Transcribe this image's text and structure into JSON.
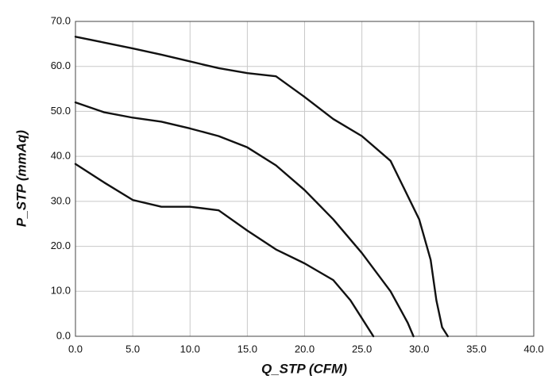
{
  "chart_data": {
    "type": "line",
    "xlabel": "Q_STP (CFM)",
    "ylabel": "P_STP (mmAq)",
    "xlim": [
      0,
      40
    ],
    "ylim": [
      0,
      70
    ],
    "grid": true,
    "xticks": [
      {
        "value": 0,
        "label": "0.0"
      },
      {
        "value": 5,
        "label": "5.0"
      },
      {
        "value": 10,
        "label": "10.0"
      },
      {
        "value": 15,
        "label": "15.0"
      },
      {
        "value": 20,
        "label": "20.0"
      },
      {
        "value": 25,
        "label": "25.0"
      },
      {
        "value": 30,
        "label": "30.0"
      },
      {
        "value": 35,
        "label": "35.0"
      },
      {
        "value": 40,
        "label": "40.0"
      }
    ],
    "yticks": [
      {
        "value": 0,
        "label": "0.0"
      },
      {
        "value": 10,
        "label": "10.0"
      },
      {
        "value": 20,
        "label": "20.0"
      },
      {
        "value": 30,
        "label": "30.0"
      },
      {
        "value": 40,
        "label": "40.0"
      },
      {
        "value": 50,
        "label": "50.0"
      },
      {
        "value": 60,
        "label": "60.0"
      },
      {
        "value": 70,
        "label": "70.0"
      }
    ],
    "series": [
      {
        "color": "#111111",
        "x": [
          0,
          2.5,
          5,
          7.5,
          10,
          12.5,
          15,
          17.5,
          20,
          22.5,
          25,
          27.5,
          30,
          31,
          31.5,
          32,
          32.5
        ],
        "values": [
          66.6,
          65.3,
          64,
          62.6,
          61.1,
          59.6,
          58.5,
          57.8,
          53.2,
          48.3,
          44.5,
          39,
          26,
          17,
          8,
          2,
          0
        ]
      },
      {
        "color": "#111111",
        "x": [
          0,
          2.5,
          5,
          7.5,
          10,
          12.5,
          15,
          17.5,
          20,
          22.5,
          25,
          27.5,
          29,
          29.5
        ],
        "values": [
          52,
          49.8,
          48.6,
          47.7,
          46.2,
          44.5,
          42,
          38,
          32.5,
          26,
          18.5,
          10,
          3,
          0
        ]
      },
      {
        "color": "#111111",
        "x": [
          0,
          2.5,
          5,
          7.5,
          10,
          12.5,
          15,
          17.5,
          20,
          22.5,
          24,
          25,
          26
        ],
        "values": [
          38.3,
          34.2,
          30.3,
          28.8,
          28.8,
          28,
          23.5,
          19.3,
          16.2,
          12.5,
          8,
          4,
          0
        ]
      }
    ]
  }
}
